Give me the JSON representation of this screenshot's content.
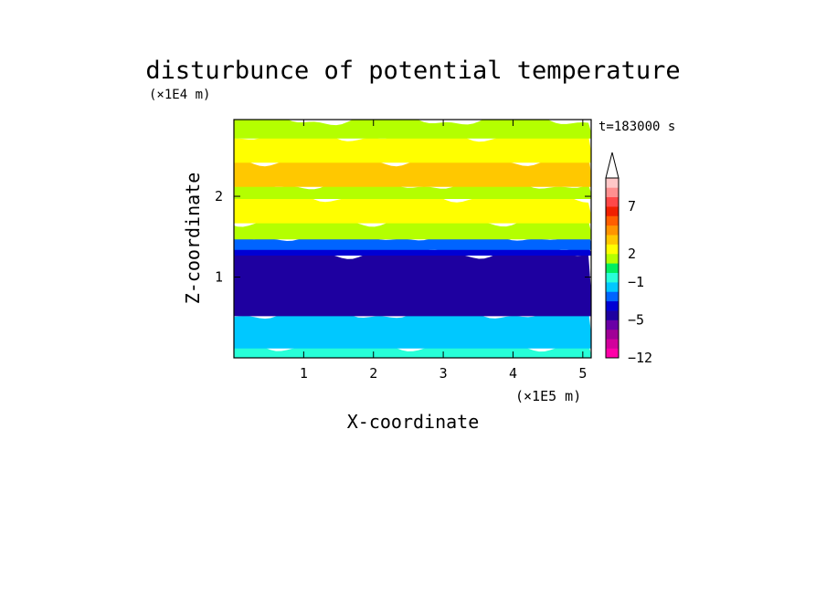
{
  "chart_data": {
    "type": "heatmap",
    "title": "disturbunce of potential temperature",
    "xlabel": "X-coordinate",
    "ylabel": "Z-coordinate",
    "x_unit": "(×1E5 m)",
    "y_unit": "(×1E4 m)",
    "time_label": "t=183000 s",
    "xlim": [
      0,
      5.12
    ],
    "ylim": [
      0,
      2.95
    ],
    "x_ticks": [
      1,
      2,
      3,
      4,
      5
    ],
    "y_ticks": [
      1,
      2
    ],
    "colorbar": {
      "levels": [
        -12,
        -11,
        -9,
        -7,
        -5,
        -4,
        -3,
        -2,
        -1,
        0,
        1,
        2,
        3,
        4,
        5,
        6,
        7,
        8,
        9
      ],
      "colors": [
        "#ff00a8",
        "#d2009c",
        "#a00096",
        "#6a00a6",
        "#1e00a0",
        "#0000d4",
        "#0064ff",
        "#00c8ff",
        "#28ffd8",
        "#00ee60",
        "#b4ff00",
        "#ffff00",
        "#ffc800",
        "#ff9400",
        "#ff5e00",
        "#f02000",
        "#ff4848",
        "#ff9090",
        "#ffc8c8"
      ],
      "tick_labels": [
        "-12",
        "-5",
        "-1",
        "2",
        "7"
      ],
      "extend": "max"
    },
    "layers": [
      {
        "z": [
          0.0,
          0.15
        ],
        "value": -0.5
      },
      {
        "z": [
          0.15,
          0.55
        ],
        "value": -1.5
      },
      {
        "z": [
          0.55,
          1.3
        ],
        "value": -5.0
      },
      {
        "z": [
          1.3,
          1.37
        ],
        "value": -3.5
      },
      {
        "z": [
          1.37,
          1.5
        ],
        "value": -2.5
      },
      {
        "z": [
          1.5,
          1.7
        ],
        "value": 1.5
      },
      {
        "z": [
          1.7,
          2.0
        ],
        "value": 2.5
      },
      {
        "z": [
          2.0,
          2.15
        ],
        "value": 1.8
      },
      {
        "z": [
          2.15,
          2.45
        ],
        "value": 3.5
      },
      {
        "z": [
          2.45,
          2.75
        ],
        "value": 2.2
      },
      {
        "z": [
          2.75,
          2.95
        ],
        "value": 1.0
      }
    ]
  }
}
